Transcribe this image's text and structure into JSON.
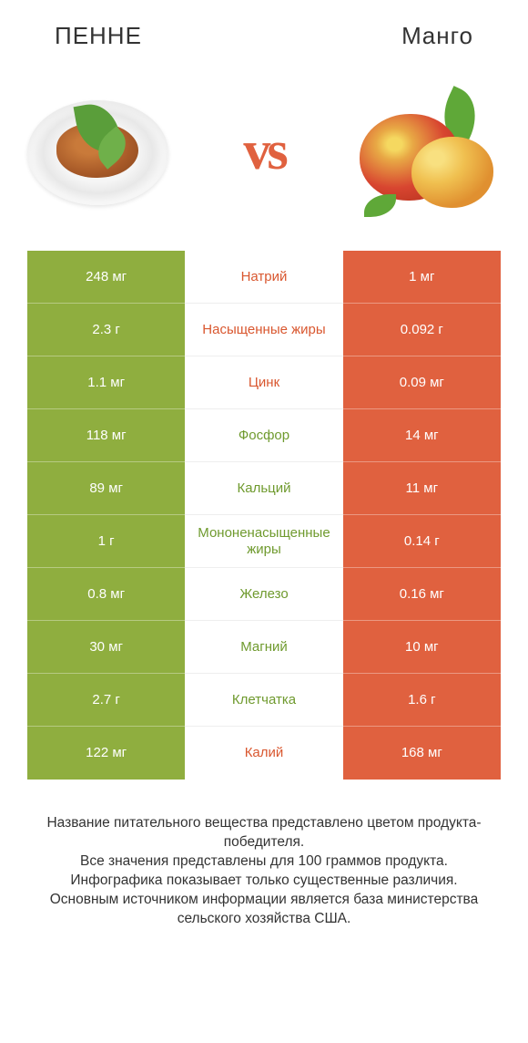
{
  "colors": {
    "green": "#8fae3f",
    "orange": "#e0613f",
    "nutrient_green_text": "#6f9a2e",
    "nutrient_orange_text": "#d9572f"
  },
  "header": {
    "left_title": "ПЕННЕ",
    "right_title": "Mанго",
    "vs": "vs"
  },
  "table": {
    "rows": [
      {
        "nutrient": "Натрий",
        "left": "248 мг",
        "right": "1 мг",
        "winner": "left"
      },
      {
        "nutrient": "Насыщенные жиры",
        "left": "2.3 г",
        "right": "0.092 г",
        "winner": "left"
      },
      {
        "nutrient": "Цинк",
        "left": "1.1 мг",
        "right": "0.09 мг",
        "winner": "left"
      },
      {
        "nutrient": "Фосфор",
        "left": "118 мг",
        "right": "14 мг",
        "winner": "right"
      },
      {
        "nutrient": "Кальций",
        "left": "89 мг",
        "right": "11 мг",
        "winner": "right"
      },
      {
        "nutrient": "Мононенасыщенные жиры",
        "left": "1 г",
        "right": "0.14 г",
        "winner": "right"
      },
      {
        "nutrient": "Железо",
        "left": "0.8 мг",
        "right": "0.16 мг",
        "winner": "right"
      },
      {
        "nutrient": "Магний",
        "left": "30 мг",
        "right": "10 мг",
        "winner": "right"
      },
      {
        "nutrient": "Клетчатка",
        "left": "2.7 г",
        "right": "1.6 г",
        "winner": "right"
      },
      {
        "nutrient": "Калий",
        "left": "122 мг",
        "right": "168 мг",
        "winner": "left"
      }
    ]
  },
  "footer": {
    "text": "Название питательного вещества представлено цветом продукта-победителя.\nВсе значения представлены для 100 граммов продукта.\nИнфографика показывает только существенные различия.\nОсновным источником информации является база министерства сельского хозяйства США."
  }
}
